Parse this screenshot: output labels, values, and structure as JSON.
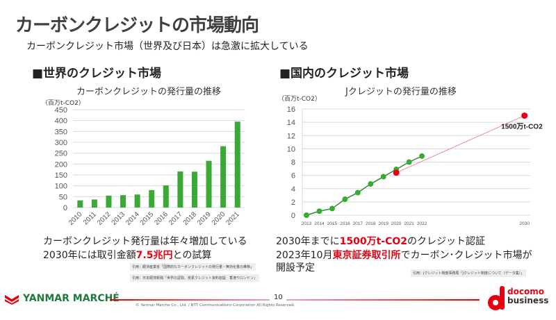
{
  "title": "カーボンクレジットの市場動向",
  "subtitle": "カーボンクレジット市場（世界及び日本）は急激に拡大している",
  "left": {
    "heading": "■世界のクレジット市場",
    "line1": "カーボンクレジット発行量は年々増加している",
    "line2_pre": "2030年には取引金額",
    "line2_red": "7.5兆円",
    "line2_post": "との試算",
    "citations": [
      "引用：経済産業省「国際的なカーボンクレジットの発行量・無効化量の推移」",
      "引用：日本経済新聞「世界の証取、炭素クレジット資料創設　香港やロンドン」"
    ]
  },
  "right": {
    "heading": "■国内のクレジット市場",
    "line1_pre": "2030年までに",
    "line1_red": "1500万t-CO2",
    "line1_post": "のクレジット認証",
    "line2_pre": "2023年10月",
    "line2_red": "東京証券取引所",
    "line2_post": "でカーボン･クレジット市場が",
    "line3": "開設予定",
    "citations": [
      "引用：Jクレジット制度事務局「Jクレジット制度について（データ集）」"
    ]
  },
  "footer": {
    "page": "10",
    "copyright": "© Yanmar Marche Co., Ltd. / NTT Communications Corporation All Rights Reserved.",
    "logo_left": "YANMAR MARCHÉ",
    "logo_right_1": "docomo",
    "logo_right_2": "business"
  },
  "colors": {
    "accent": "#e60012",
    "bar": "#3aa935",
    "line": "#2e8b2e",
    "title": "#404040"
  },
  "chart_data": [
    {
      "type": "bar",
      "title": "カーボンクレジットの発行量の推移",
      "ylabel": "（百万t-CO2）",
      "ylim": [
        0,
        450
      ],
      "yticks": [
        0,
        50,
        100,
        150,
        200,
        250,
        300,
        350,
        400,
        450
      ],
      "grid": true,
      "categories": [
        "2010",
        "2011",
        "2012",
        "2013",
        "2014",
        "2015",
        "2016",
        "2017",
        "2018",
        "2019",
        "2020",
        "2021"
      ],
      "values": [
        33,
        37,
        55,
        57,
        60,
        80,
        102,
        166,
        165,
        215,
        282,
        395
      ]
    },
    {
      "type": "line",
      "title": "Jクレジットの発行量の推移",
      "ylabel": "（百万t-CO2）",
      "ylim": [
        0,
        16
      ],
      "yticks": [
        0,
        2,
        4,
        6,
        8,
        10,
        12,
        14,
        16
      ],
      "grid": true,
      "xticks": [
        "2013",
        "2014",
        "2015",
        "2016",
        "2017",
        "2018",
        "2019",
        "2020",
        "2021",
        "2022",
        "2030"
      ],
      "series": [
        {
          "x": [
            2013,
            2014,
            2015,
            2016,
            2017,
            2018,
            2019,
            2020,
            2021,
            2022
          ],
          "values": [
            0,
            0.6,
            1.0,
            2.4,
            3.4,
            4.7,
            5.8,
            6.9,
            8.0,
            8.9
          ],
          "color": "#3aa935"
        },
        {
          "x": [
            2020,
            2030
          ],
          "values": [
            6.4,
            15
          ],
          "color": "#e60012"
        }
      ],
      "annotations": [
        {
          "x": 2030,
          "y": 15,
          "text": "1500万t-CO2"
        }
      ]
    }
  ]
}
